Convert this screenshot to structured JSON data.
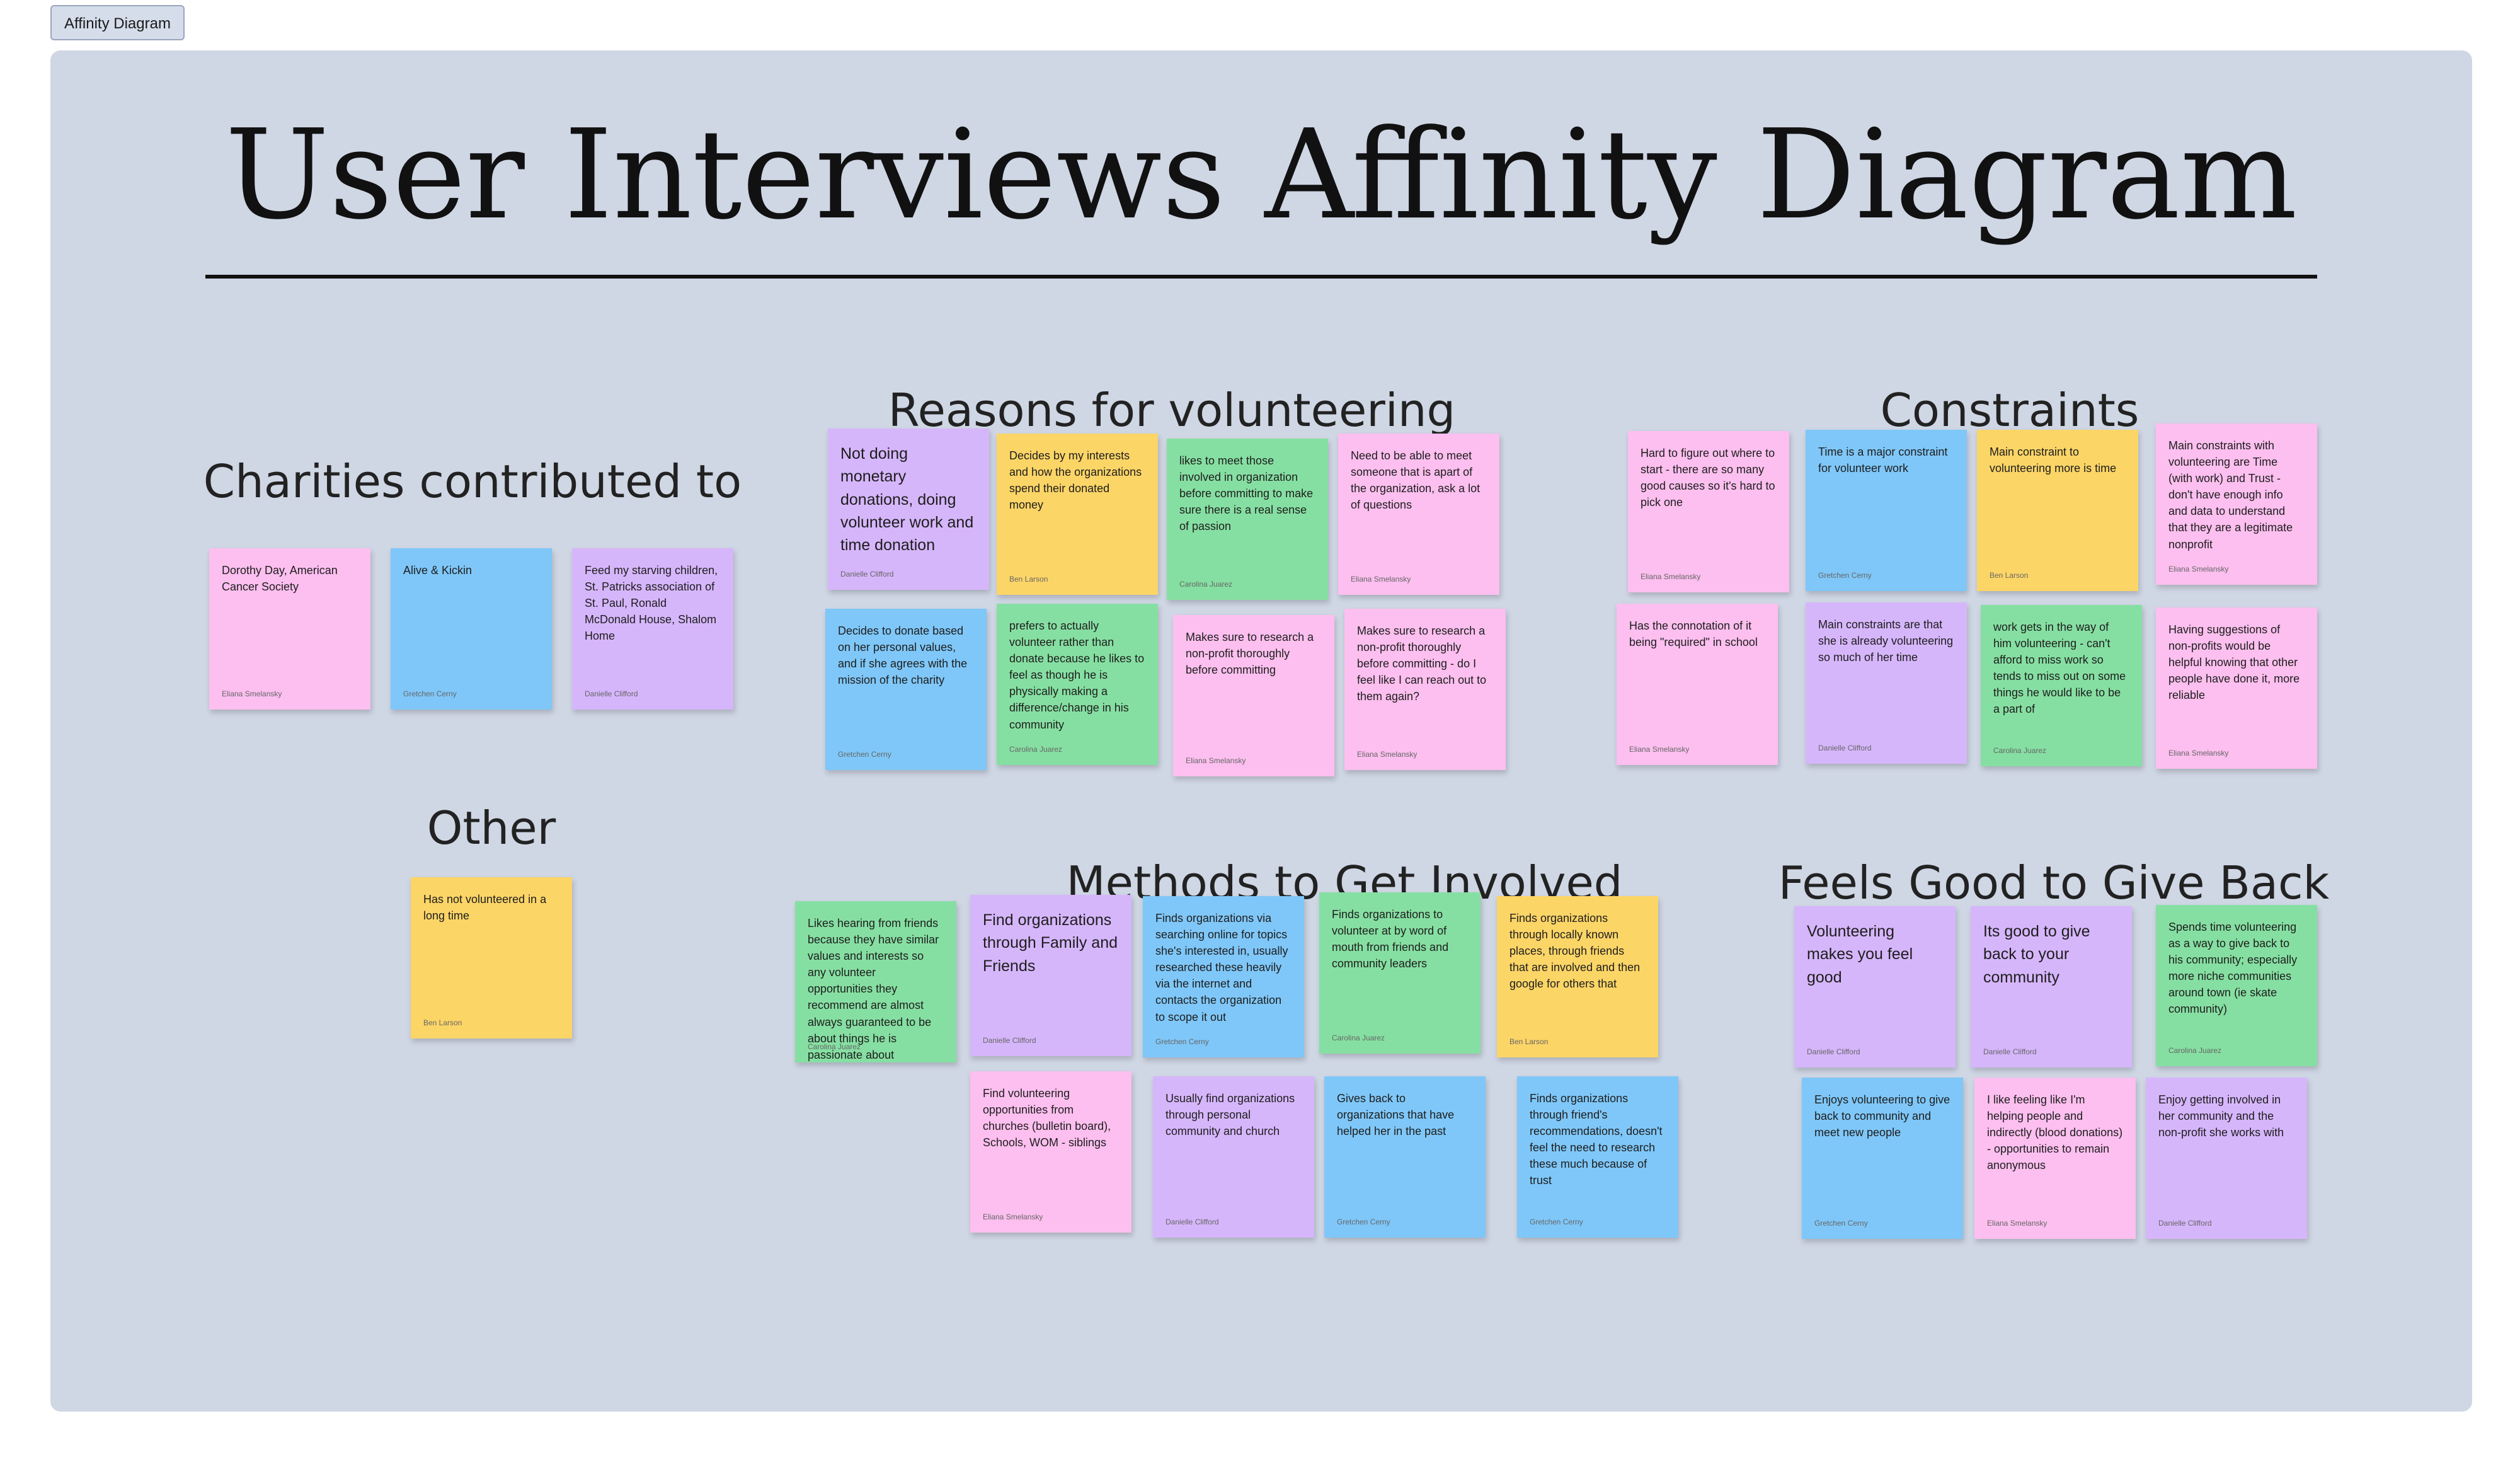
{
  "tab": {
    "label": "Affinity Diagram"
  },
  "title": "User Interviews Affinity Diagram",
  "headings": {
    "charities": "Charities contributed to",
    "reasons": "Reasons for volunteering",
    "constraints": "Constraints",
    "other": "Other",
    "methods": "Methods to Get Involved",
    "feels": "Feels Good to Give Back"
  },
  "colors": {
    "board": "#cfd6e4",
    "pink": "#fcbfef",
    "blue": "#7fc7f8",
    "purple": "#d6b6fb",
    "yellow": "#fcd567",
    "green": "#86dfa2"
  },
  "notes": {
    "charities": [
      {
        "text": "Dorothy Day, American Cancer Society",
        "author": "Eliana Smelansky",
        "color": "pink"
      },
      {
        "text": "Alive & Kickin",
        "author": "Gretchen Cerny",
        "color": "blue"
      },
      {
        "text": "Feed my starving children, St. Patricks association of St. Paul, Ronald McDonald House, Shalom Home",
        "author": "Danielle Clifford",
        "color": "purple"
      }
    ],
    "other": [
      {
        "text": "Has not volunteered in a long time",
        "author": "Ben Larson",
        "color": "yellow"
      }
    ],
    "reasons": [
      {
        "text": "Not doing monetary donations, doing volunteer work and time donation",
        "author": "Danielle Clifford",
        "color": "purple"
      },
      {
        "text": "Decides by my interests and how the organizations spend their donated money",
        "author": "Ben Larson",
        "color": "yellow"
      },
      {
        "text": "likes to meet those involved in organization before committing to make sure there is a real sense of passion",
        "author": "Carolina Juarez",
        "color": "green"
      },
      {
        "text": "Need to be able to meet someone that is apart of the organization, ask a lot of questions",
        "author": "Eliana Smelansky",
        "color": "pink"
      },
      {
        "text": "Decides to donate based on her personal values, and if she agrees with the mission of the charity",
        "author": "Gretchen Cerny",
        "color": "blue"
      },
      {
        "text": "prefers to actually volunteer rather than donate because he likes to feel as though he is physically making a difference/change in his community",
        "author": "Carolina Juarez",
        "color": "green"
      },
      {
        "text": "Makes sure to research a non-profit thoroughly before committing",
        "author": "Eliana Smelansky",
        "color": "pink"
      },
      {
        "text": "Makes sure to research a non-profit thoroughly before committing - do I feel like I can reach out to them again?",
        "author": "Eliana Smelansky",
        "color": "pink"
      }
    ],
    "constraints": [
      {
        "text": "Hard to figure out where to start - there are so many good causes so it's hard to pick one",
        "author": "Eliana Smelansky",
        "color": "pink"
      },
      {
        "text": "Time is a major constraint for volunteer work",
        "author": "Gretchen Cerny",
        "color": "blue"
      },
      {
        "text": "Main constraint to volunteering more is time",
        "author": "Ben Larson",
        "color": "yellow"
      },
      {
        "text": "Main constraints with volunteering are Time (with work) and Trust - don't have enough info and data to understand that they are a legitimate nonprofit",
        "author": "Eliana Smelansky",
        "color": "pink"
      },
      {
        "text": "Has the connotation of it being \"required\" in school",
        "author": "Eliana Smelansky",
        "color": "pink"
      },
      {
        "text": "Main constraints are that she is already volunteering so much of her time",
        "author": "Danielle Clifford",
        "color": "purple"
      },
      {
        "text": "work gets in the way of him volunteering - can't afford to miss work so tends to miss out on some things he would like to be a part of",
        "author": "Carolina Juarez",
        "color": "green"
      },
      {
        "text": "Having suggestions of non-profits would be helpful knowing that other people have done it, more reliable",
        "author": "Eliana Smelansky",
        "color": "pink"
      }
    ],
    "methods": [
      {
        "text": "Likes hearing from friends because they have similar values and interests so any volunteer opportunities they recommend are almost always guaranteed to be about things he is passionate about",
        "author": "Carolina Juarez",
        "color": "green"
      },
      {
        "text": "Find organizations through Family and Friends",
        "author": "Danielle Clifford",
        "color": "purple"
      },
      {
        "text": "Finds organizations via searching online for topics she's interested in, usually researched these heavily via the internet and contacts the organization to scope it out",
        "author": "Gretchen Cerny",
        "color": "blue"
      },
      {
        "text": "Finds organizations to volunteer at by word of mouth from friends and community leaders",
        "author": "Carolina Juarez",
        "color": "green"
      },
      {
        "text": "Finds organizations through locally known places, through friends that are involved and then google for others that",
        "author": "Ben Larson",
        "color": "yellow"
      },
      {
        "text": "Find volunteering opportunities from churches (bulletin board), Schools, WOM - siblings",
        "author": "Eliana Smelansky",
        "color": "pink"
      },
      {
        "text": "Usually find organizations through personal community and church",
        "author": "Danielle Clifford",
        "color": "purple"
      },
      {
        "text": "Gives back to organizations that have helped her in the past",
        "author": "Gretchen Cerny",
        "color": "blue"
      },
      {
        "text": "Finds organizations through friend's recommendations, doesn't feel the need to research these much because of trust",
        "author": "Gretchen Cerny",
        "color": "blue"
      }
    ],
    "feels": [
      {
        "text": "Volunteering makes you feel good",
        "author": "Danielle Clifford",
        "color": "purple"
      },
      {
        "text": "Its good to give back to your community",
        "author": "Danielle Clifford",
        "color": "purple"
      },
      {
        "text": "Spends time volunteering as a way to give back to his community; especially more niche communities around town (ie skate community)",
        "author": "Carolina Juarez",
        "color": "green"
      },
      {
        "text": "Enjoys volunteering to give back to community and meet new people",
        "author": "Gretchen Cerny",
        "color": "blue"
      },
      {
        "text": "I like feeling like I'm helping people and indirectly (blood donations) - opportunities to remain anonymous",
        "author": "Eliana Smelansky",
        "color": "pink"
      },
      {
        "text": "Enjoy getting involved in her community and the non-profit she works with",
        "author": "Danielle Clifford",
        "color": "purple"
      }
    ]
  }
}
